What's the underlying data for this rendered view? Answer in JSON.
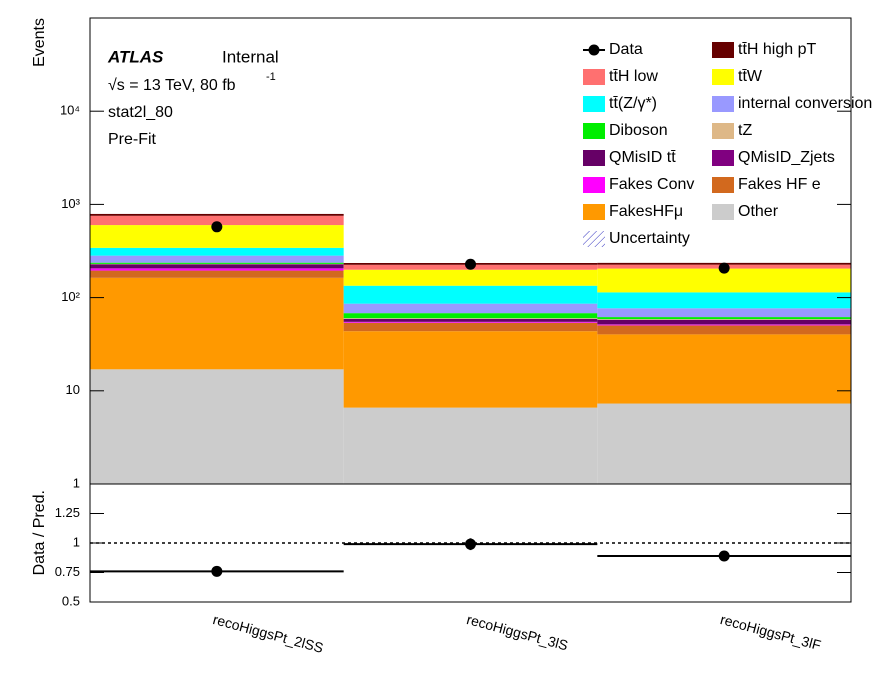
{
  "chart_data": [
    {
      "type": "stacked_histogram",
      "y_label": "Events",
      "categories": [
        "recoHiggsPt_2lSS",
        "recoHiggsPt_3lS",
        "recoHiggsPt_3lF"
      ],
      "log_scale": true,
      "ylim": [
        1,
        100000
      ],
      "yticks": [
        1,
        10,
        {
          "value": 100,
          "label": "10²"
        },
        {
          "value": 1000,
          "label": "10³"
        },
        {
          "value": 10000,
          "label": "10⁴"
        }
      ],
      "texts": {
        "experiment": "ATLAS",
        "status": "Internal",
        "energy": "√s = 13 TeV, 80 fb",
        "lumi_exponent": "-1",
        "region": "stat2l_80",
        "fit": "Pre-Fit"
      },
      "data": {
        "name": "Data",
        "color": "#000000",
        "values": [
          575,
          228,
          207
        ]
      },
      "series": [
        {
          "name": "tt̄H   high pT",
          "color": "#660000",
          "values": [
            35,
            10,
            10
          ]
        },
        {
          "name": "tt̄H   low",
          "color": "#ff7070",
          "values": [
            155,
            26,
            21
          ]
        },
        {
          "name": "tt̄W",
          "color": "#ffff00",
          "values": [
            258,
            65,
            91
          ]
        },
        {
          "name": "tt̄(Z/γ*)",
          "color": "#00ffff",
          "values": [
            60,
            48,
            37
          ]
        },
        {
          "name": "internal conversion",
          "color": "#9999ff",
          "values": [
            45,
            18,
            15
          ]
        },
        {
          "name": "Diboson",
          "color": "#00ee00",
          "values": [
            7,
            8,
            3
          ]
        },
        {
          "name": "tZ",
          "color": "#deb887",
          "values": [
            2,
            1,
            1
          ]
        },
        {
          "name": "QMisID   tt̄",
          "color": "#660066",
          "values": [
            21,
            4,
            6
          ]
        },
        {
          "name": "QMisID_Zjets",
          "color": "#800080",
          "values": [
            2,
            0.5,
            0.5
          ]
        },
        {
          "name": "Fakes Conv",
          "color": "#ff00ff",
          "values": [
            10,
            1,
            1
          ]
        },
        {
          "name": "Fakes HF e",
          "color": "#d2691e",
          "values": [
            32,
            10,
            10
          ]
        },
        {
          "name": "FakesHFμ",
          "color": "#ff9900",
          "values": [
            146,
            37,
            33
          ]
        },
        {
          "name": "Other",
          "color": "#cccccc",
          "values": [
            17,
            6.6,
            7.3
          ]
        }
      ],
      "uncertainty": {
        "name": "Uncertainty",
        "color": "#3030c0"
      }
    },
    {
      "type": "ratio",
      "y_label": "Data / Pred.",
      "ylim": [
        0.5,
        1.5
      ],
      "yticks": [
        0.5,
        0.75,
        1,
        1.25
      ],
      "reference": 1,
      "values": [
        0.76,
        0.99,
        0.89
      ],
      "errors": [
        0.02,
        0.05,
        0.04
      ]
    }
  ]
}
